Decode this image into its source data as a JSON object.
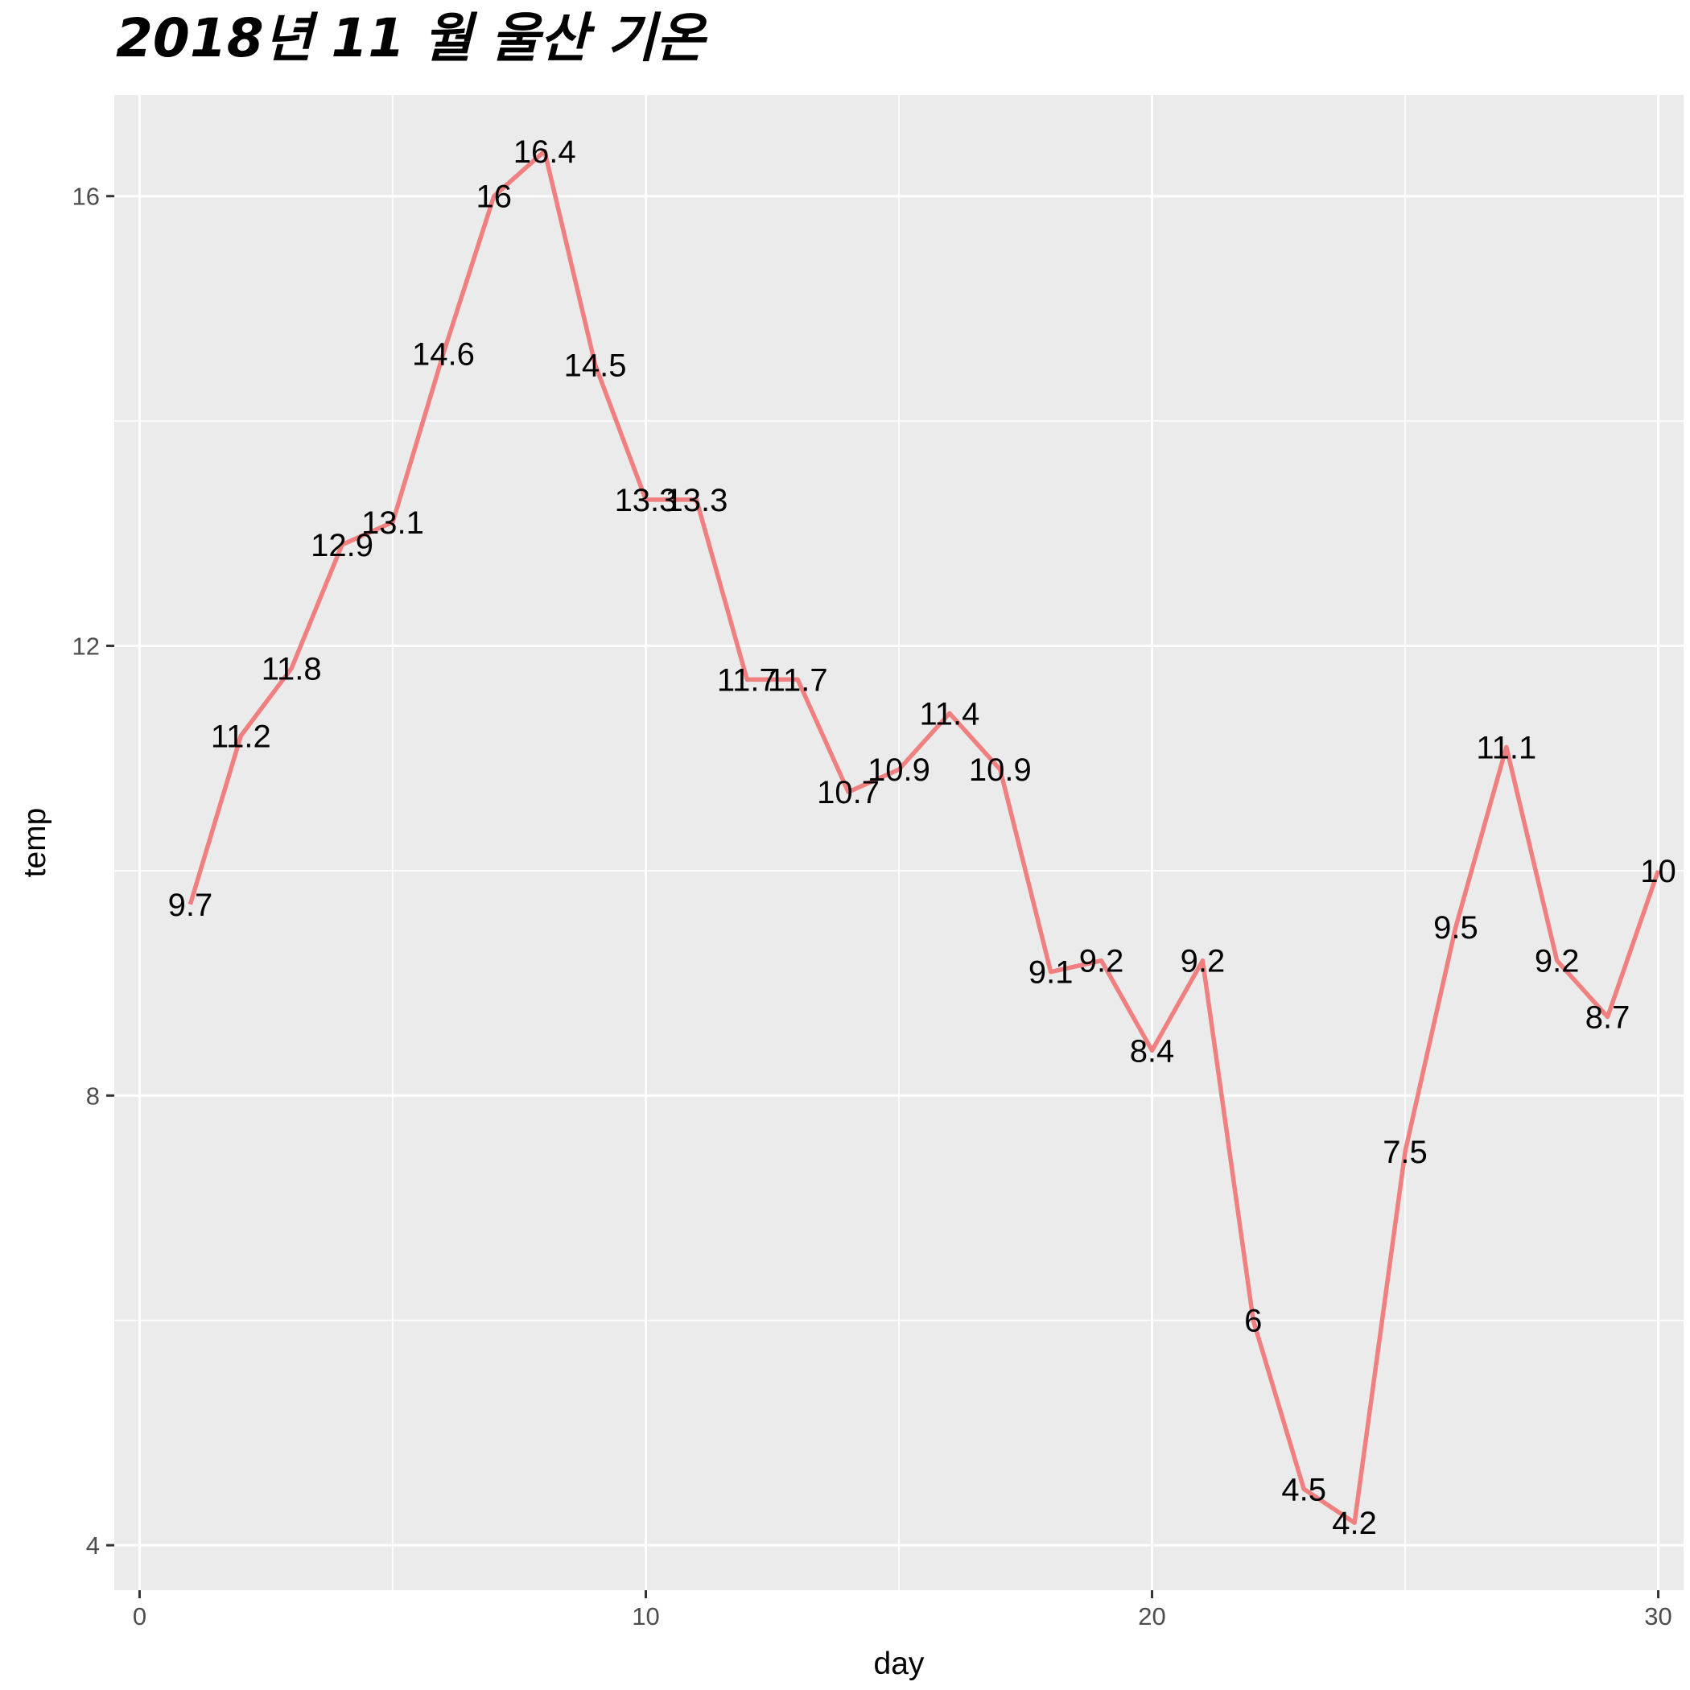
{
  "chart_data": {
    "type": "line",
    "title": "2018년 11 월 울산 기온",
    "xlabel": "day",
    "ylabel": "temp",
    "xlim": [
      -0.5,
      30.5
    ],
    "ylim": [
      3.6,
      16.9
    ],
    "x_ticks": [
      0,
      10,
      20,
      30
    ],
    "y_ticks": [
      4,
      8,
      12,
      16
    ],
    "x_minor": [
      5,
      15,
      25
    ],
    "y_minor": [
      6,
      10,
      14
    ],
    "grid": true,
    "line_color": "#f08080",
    "panel_color": "#ebebeb",
    "x": [
      1,
      2,
      3,
      4,
      5,
      6,
      7,
      8,
      9,
      10,
      11,
      12,
      13,
      14,
      15,
      16,
      17,
      18,
      19,
      20,
      21,
      22,
      23,
      24,
      25,
      26,
      27,
      28,
      29,
      30
    ],
    "values": [
      9.7,
      11.2,
      11.8,
      12.9,
      13.1,
      14.6,
      16,
      16.4,
      14.5,
      13.3,
      13.3,
      11.7,
      11.7,
      10.7,
      10.9,
      11.4,
      10.9,
      9.1,
      9.2,
      8.4,
      9.2,
      6,
      4.5,
      4.2,
      7.5,
      9.5,
      11.1,
      9.2,
      8.7,
      10
    ],
    "labels": [
      "9.7",
      "11.2",
      "11.8",
      "12.9",
      "13.1",
      "14.6",
      "16",
      "16.4",
      "14.5",
      "13.3",
      "13.3",
      "11.7",
      "11.7",
      "10.7",
      "10.9",
      "11.4",
      "10.9",
      "9.1",
      "9.2",
      "8.4",
      "9.2",
      "6",
      "4.5",
      "4.2",
      "7.5",
      "9.5",
      "11.1",
      "9.2",
      "8.7",
      "10"
    ],
    "x_tick_labels": [
      "0",
      "10",
      "20",
      "30"
    ],
    "y_tick_labels": [
      "4",
      "8",
      "12",
      "16"
    ]
  }
}
